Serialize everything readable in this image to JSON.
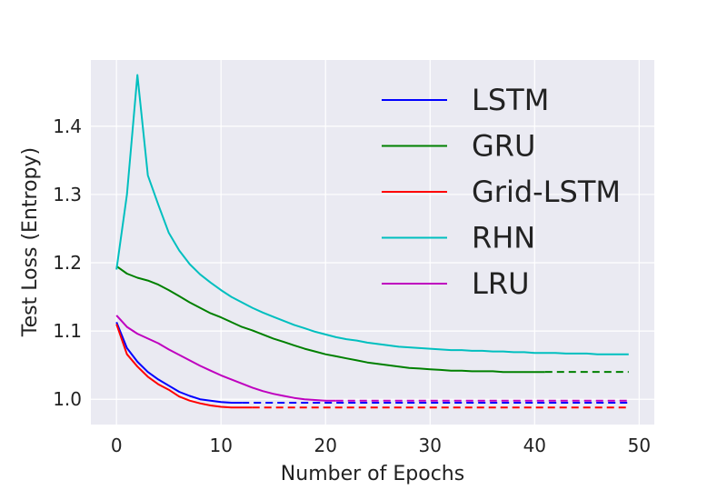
{
  "chart_data": {
    "type": "line",
    "title": "",
    "xlabel": "Number of Epochs",
    "ylabel": "Test Loss (Entropy)",
    "xlim": [
      -2.45,
      51.45
    ],
    "ylim": [
      0.963,
      1.497
    ],
    "xticks": [
      0,
      10,
      20,
      30,
      40,
      50
    ],
    "yticks": [
      1.0,
      1.1,
      1.2,
      1.3,
      1.4
    ],
    "xtick_labels": [
      "0",
      "10",
      "20",
      "30",
      "40",
      "50"
    ],
    "ytick_labels": [
      "1.0",
      "1.1",
      "1.2",
      "1.3",
      "1.4"
    ],
    "grid": true,
    "legend_position": "upper-right",
    "series": [
      {
        "name": "LSTM",
        "color": "#0000ff",
        "x": [
          0,
          1,
          2,
          3,
          4,
          5,
          6,
          7,
          8,
          9,
          10,
          11,
          12
        ],
        "values": [
          1.113,
          1.075,
          1.055,
          1.04,
          1.029,
          1.02,
          1.011,
          1.005,
          1.0,
          0.998,
          0.996,
          0.995,
          0.995
        ],
        "extension_end_x": 49,
        "extension_value": 0.995
      },
      {
        "name": "GRU",
        "color": "#008000",
        "x": [
          0,
          1,
          2,
          3,
          4,
          5,
          6,
          7,
          8,
          9,
          10,
          11,
          12,
          13,
          14,
          15,
          16,
          17,
          18,
          19,
          20,
          21,
          22,
          23,
          24,
          25,
          26,
          27,
          28,
          29,
          30,
          31,
          32,
          33,
          34,
          35,
          36,
          37,
          38,
          39,
          40,
          41
        ],
        "values": [
          1.195,
          1.184,
          1.178,
          1.174,
          1.168,
          1.16,
          1.151,
          1.142,
          1.134,
          1.126,
          1.12,
          1.113,
          1.106,
          1.101,
          1.095,
          1.089,
          1.084,
          1.079,
          1.074,
          1.07,
          1.066,
          1.063,
          1.06,
          1.057,
          1.054,
          1.052,
          1.05,
          1.048,
          1.046,
          1.045,
          1.044,
          1.043,
          1.042,
          1.042,
          1.041,
          1.041,
          1.041,
          1.04,
          1.04,
          1.04,
          1.04,
          1.04
        ],
        "extension_end_x": 49,
        "extension_value": 1.04
      },
      {
        "name": "Grid-LSTM",
        "color": "#ff0000",
        "x": [
          0,
          1,
          2,
          3,
          4,
          5,
          6,
          7,
          8,
          9,
          10,
          11,
          12,
          13
        ],
        "values": [
          1.11,
          1.066,
          1.048,
          1.033,
          1.022,
          1.014,
          1.004,
          0.998,
          0.994,
          0.991,
          0.989,
          0.988,
          0.988,
          0.988
        ],
        "extension_end_x": 49,
        "extension_value": 0.988
      },
      {
        "name": "RHN",
        "color": "#00bfbf",
        "x": [
          0,
          1,
          2,
          3,
          4,
          5,
          6,
          7,
          8,
          9,
          10,
          11,
          12,
          13,
          14,
          15,
          16,
          17,
          18,
          19,
          20,
          21,
          22,
          23,
          24,
          25,
          26,
          27,
          28,
          29,
          30,
          31,
          32,
          33,
          34,
          35,
          36,
          37,
          38,
          39,
          40,
          41,
          42,
          43,
          44,
          45,
          46,
          47,
          48,
          49
        ],
        "values": [
          1.19,
          1.3,
          1.475,
          1.328,
          1.285,
          1.244,
          1.218,
          1.198,
          1.183,
          1.171,
          1.16,
          1.15,
          1.142,
          1.134,
          1.127,
          1.121,
          1.115,
          1.109,
          1.104,
          1.099,
          1.095,
          1.091,
          1.088,
          1.086,
          1.083,
          1.081,
          1.079,
          1.077,
          1.076,
          1.075,
          1.074,
          1.073,
          1.072,
          1.072,
          1.071,
          1.071,
          1.07,
          1.07,
          1.069,
          1.069,
          1.068,
          1.068,
          1.068,
          1.067,
          1.067,
          1.067,
          1.066,
          1.066,
          1.066,
          1.066
        ]
      },
      {
        "name": "LRU",
        "color": "#bf00bf",
        "x": [
          0,
          1,
          2,
          3,
          4,
          5,
          6,
          7,
          8,
          9,
          10,
          11,
          12,
          13,
          14,
          15,
          16,
          17,
          18,
          19,
          20,
          21
        ],
        "values": [
          1.123,
          1.106,
          1.096,
          1.089,
          1.082,
          1.073,
          1.065,
          1.057,
          1.049,
          1.042,
          1.035,
          1.029,
          1.023,
          1.017,
          1.012,
          1.008,
          1.005,
          1.002,
          1.0,
          0.999,
          0.998,
          0.998
        ],
        "extension_end_x": 49,
        "extension_value": 0.998
      }
    ]
  }
}
